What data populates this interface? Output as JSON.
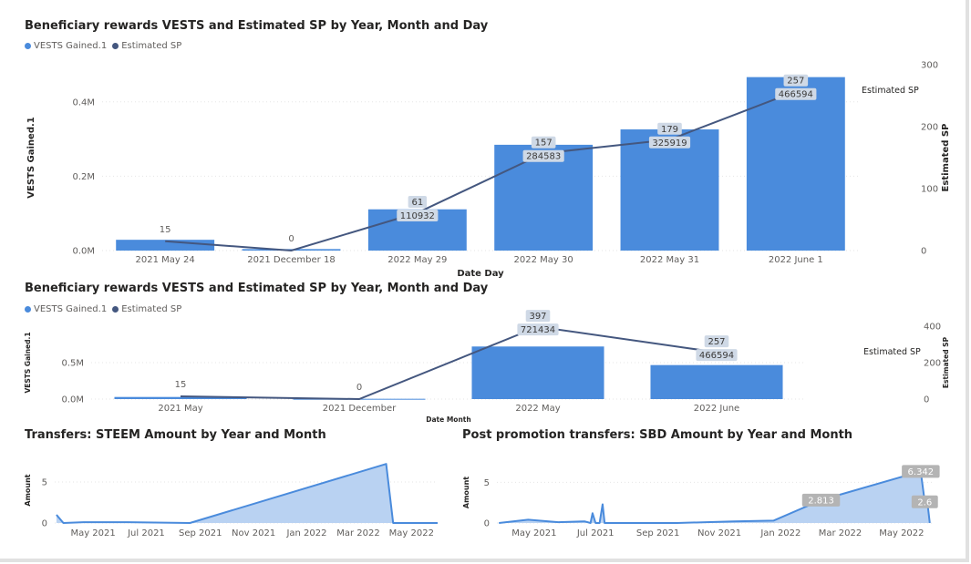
{
  "colors": {
    "bar": "#4a8bdc",
    "line": "#44577f",
    "area": "#b9d2f2",
    "grid": "#e6e6e6",
    "tick": "#605e5c",
    "label_box": "#cfd9e6",
    "label_box_gray": "#b4b4b4"
  },
  "chart_data": [
    {
      "type": "bar+line",
      "title": "Beneficiary rewards VESTS and Estimated SP by Year, Month and Day",
      "legend": [
        "VESTS Gained.1",
        "Estimated SP"
      ],
      "xlabel": "Date Day",
      "ylabel": "VESTS Gained.1",
      "y2label": "Estimated SP",
      "line_end_label": "Estimated SP",
      "categories": [
        "2021 May 24",
        "2021 December 18",
        "2022 May 29",
        "2022 May 30",
        "2022 May 31",
        "2022 June 1"
      ],
      "bars": [
        29000,
        4000,
        110932,
        284583,
        325919,
        466594
      ],
      "bar_labels": [
        "",
        "",
        "110932",
        "284583",
        "325919",
        "466594"
      ],
      "line": [
        15,
        0,
        61,
        157,
        179,
        257
      ],
      "line_labels": [
        "15",
        "0",
        "61",
        "157",
        "179",
        "257"
      ],
      "ylim": [
        0,
        500000
      ],
      "y2lim": [
        0,
        300
      ],
      "yticks": [
        {
          "v": 0,
          "label": "0.0M"
        },
        {
          "v": 200000,
          "label": "0.2M"
        },
        {
          "v": 400000,
          "label": "0.4M"
        }
      ],
      "y2ticks": [
        {
          "v": 0,
          "label": "0"
        },
        {
          "v": 100,
          "label": "100"
        },
        {
          "v": 200,
          "label": "200"
        },
        {
          "v": 300,
          "label": "300"
        }
      ]
    },
    {
      "type": "bar+line",
      "title": "Beneficiary rewards VESTS and Estimated SP by Year, Month and Day",
      "legend": [
        "VESTS Gained.1",
        "Estimated SP"
      ],
      "xlabel": "Date Month",
      "ylabel": "VESTS Gained.1",
      "y2label": "Estimated SP",
      "line_end_label": "Estimated SP",
      "categories": [
        "2021 May",
        "2021 December",
        "2022 May",
        "2022 June"
      ],
      "bars": [
        29000,
        4000,
        721434,
        466594
      ],
      "bar_labels": [
        "",
        "",
        "721434",
        "466594"
      ],
      "line": [
        15,
        0,
        397,
        257
      ],
      "line_labels": [
        "15",
        "0",
        "397",
        "257"
      ],
      "ylim": [
        0,
        1000000
      ],
      "y2lim": [
        0,
        400
      ],
      "yticks": [
        {
          "v": 0,
          "label": "0.0M"
        },
        {
          "v": 500000,
          "label": "0.5M"
        }
      ],
      "y2ticks": [
        {
          "v": 0,
          "label": "0"
        },
        {
          "v": 200,
          "label": "200"
        },
        {
          "v": 400,
          "label": "400"
        }
      ]
    },
    {
      "type": "area",
      "title": "Transfers: STEEM Amount by Year and Month",
      "ylabel": "Amount",
      "xmin": "2021-03-18",
      "xmax": "2022-05-31",
      "points": [
        [
          "2021-03-20",
          1.0
        ],
        [
          "2021-03-28",
          0
        ],
        [
          "2021-04-20",
          0.1
        ],
        [
          "2021-06-10",
          0.1
        ],
        [
          "2021-08-20",
          0
        ],
        [
          "2022-04-02",
          7.2
        ],
        [
          "2022-04-10",
          0
        ],
        [
          "2022-05-31",
          0
        ]
      ],
      "ylim": [
        0,
        8
      ],
      "yticks": [
        {
          "v": 0,
          "label": "0"
        },
        {
          "v": 5,
          "label": "5"
        }
      ],
      "xticks": [
        {
          "d": "2021-05-01",
          "label": "May 2021"
        },
        {
          "d": "2021-07-01",
          "label": "Jul 2021"
        },
        {
          "d": "2021-09-01",
          "label": "Sep 2021"
        },
        {
          "d": "2021-11-01",
          "label": "Nov 2021"
        },
        {
          "d": "2022-01-01",
          "label": "Jan 2022"
        },
        {
          "d": "2022-03-01",
          "label": "Mar 2022"
        },
        {
          "d": "2022-05-01",
          "label": "May 2022"
        }
      ],
      "data_labels": []
    },
    {
      "type": "area",
      "title": "Post promotion transfers: SBD Amount by Year and Month",
      "ylabel": "Amount",
      "xmin": "2021-03-25",
      "xmax": "2022-05-31",
      "points": [
        [
          "2021-03-27",
          0
        ],
        [
          "2021-04-25",
          0.4
        ],
        [
          "2021-05-25",
          0.1
        ],
        [
          "2021-06-20",
          0.2
        ],
        [
          "2021-06-26",
          0
        ],
        [
          "2021-06-28",
          1.2
        ],
        [
          "2021-07-01",
          0
        ],
        [
          "2021-07-05",
          0
        ],
        [
          "2021-07-08",
          2.3
        ],
        [
          "2021-07-10",
          0
        ],
        [
          "2021-09-20",
          0
        ],
        [
          "2021-11-15",
          0.2
        ],
        [
          "2021-12-25",
          0.3
        ],
        [
          "2022-02-10",
          2.813
        ],
        [
          "2022-05-20",
          6.342
        ],
        [
          "2022-05-24",
          2.6
        ],
        [
          "2022-05-26",
          3.2
        ],
        [
          "2022-05-29",
          0
        ]
      ],
      "ylim": [
        0,
        7.5
      ],
      "yticks": [
        {
          "v": 0,
          "label": "0"
        },
        {
          "v": 5,
          "label": "5"
        }
      ],
      "xticks": [
        {
          "d": "2021-05-01",
          "label": "May 2021"
        },
        {
          "d": "2021-07-01",
          "label": "Jul 2021"
        },
        {
          "d": "2021-09-01",
          "label": "Sep 2021"
        },
        {
          "d": "2021-11-01",
          "label": "Nov 2021"
        },
        {
          "d": "2022-01-01",
          "label": "Jan 2022"
        },
        {
          "d": "2022-03-01",
          "label": "Mar 2022"
        },
        {
          "d": "2022-05-01",
          "label": "May 2022"
        }
      ],
      "data_labels": [
        {
          "d": "2022-02-10",
          "v": 2.813,
          "label": "2.813"
        },
        {
          "d": "2022-05-20",
          "v": 6.342,
          "label": "6.342"
        },
        {
          "d": "2022-05-24",
          "v": 2.6,
          "label": "2.6"
        }
      ]
    }
  ]
}
